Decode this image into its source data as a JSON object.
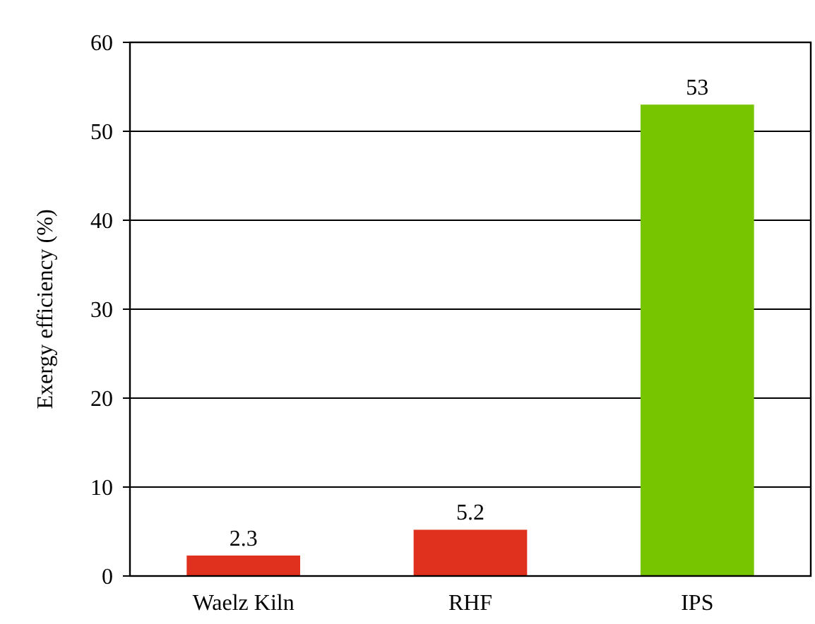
{
  "chart_data": {
    "type": "bar",
    "ylabel": "Exergy efficiency (%)",
    "categories": [
      "Waelz Kiln",
      "RHF",
      "IPS"
    ],
    "values": [
      2.3,
      5.2,
      53
    ],
    "colors": [
      "#e0301e",
      "#e0301e",
      "#77c400"
    ],
    "ylim": [
      0,
      60
    ],
    "yticks": [
      0,
      10,
      20,
      30,
      40,
      50,
      60
    ],
    "grid": "y",
    "data_labels": true
  }
}
